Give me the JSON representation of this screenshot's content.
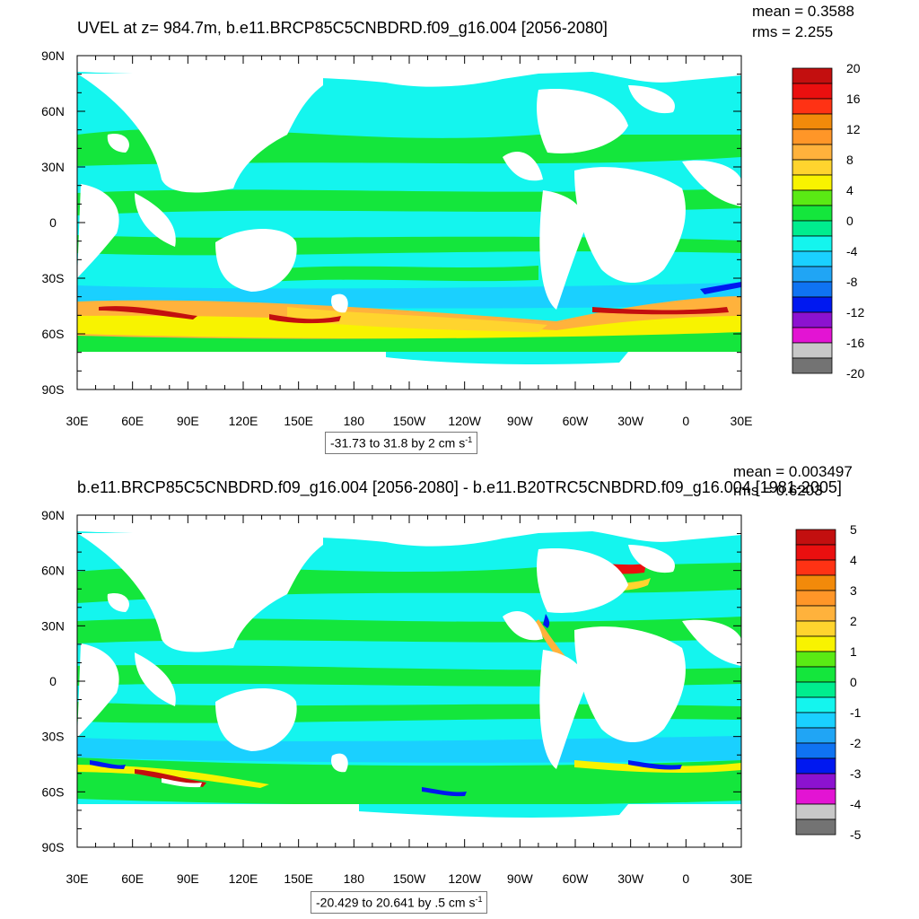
{
  "colors": {
    "c0": "#737373",
    "c1": "#c8c8c8",
    "c2": "#e314d3",
    "c3": "#8c12d0",
    "c4": "#0018f0",
    "c5": "#0f73f2",
    "c6": "#20a5f5",
    "c7": "#1ad0ff",
    "c8": "#14f5ee",
    "c9": "#00ed8e",
    "c10": "#14e63c",
    "c11": "#5aea14",
    "c12": "#f8f300",
    "c13": "#ffd42e",
    "c14": "#ffb23c",
    "c15": "#ff9628",
    "c16": "#f28a0a",
    "c17": "#ff3214",
    "c18": "#ea0f0f",
    "c19": "#c30f0f"
  },
  "panels": [
    {
      "title": "UVEL at z= 984.7m, b.e11.BRCP85C5CNBDRD.f09_g16.004 [2056-2080]",
      "mean": "mean = 0.3588",
      "rms": "rms = 2.255",
      "caption": "-31.73 to 31.8 by 2 cm s",
      "caption_unit_exp": "-1",
      "colorbar_labels": [
        "20",
        "16",
        "12",
        "8",
        "4",
        "0",
        "-4",
        "-8",
        "-12",
        "-16",
        "-20"
      ],
      "lat_labels": [
        "90N",
        "60N",
        "30N",
        "0",
        "30S",
        "60S",
        "90S"
      ],
      "lon_labels": [
        "30E",
        "60E",
        "90E",
        "120E",
        "150E",
        "180",
        "150W",
        "120W",
        "90W",
        "60W",
        "30W",
        "0",
        "30E"
      ]
    },
    {
      "title": "b.e11.BRCP85C5CNBDRD.f09_g16.004 [2056-2080] - b.e11.B20TRC5CNBDRD.f09_g16.004 [1981-2005]",
      "mean": "mean = 0.003497",
      "rms": "rms = 0.6203",
      "caption": "-20.429 to 20.641 by .5 cm s",
      "caption_unit_exp": "-1",
      "colorbar_labels": [
        "5",
        "4",
        "3",
        "2",
        "1",
        "0",
        "-1",
        "-2",
        "-3",
        "-4",
        "-5"
      ],
      "lat_labels": [
        "90N",
        "60N",
        "30N",
        "0",
        "30S",
        "60S",
        "90S"
      ],
      "lon_labels": [
        "30E",
        "60E",
        "90E",
        "120E",
        "150E",
        "180",
        "150W",
        "120W",
        "90W",
        "60W",
        "30W",
        "0",
        "30E"
      ]
    }
  ]
}
